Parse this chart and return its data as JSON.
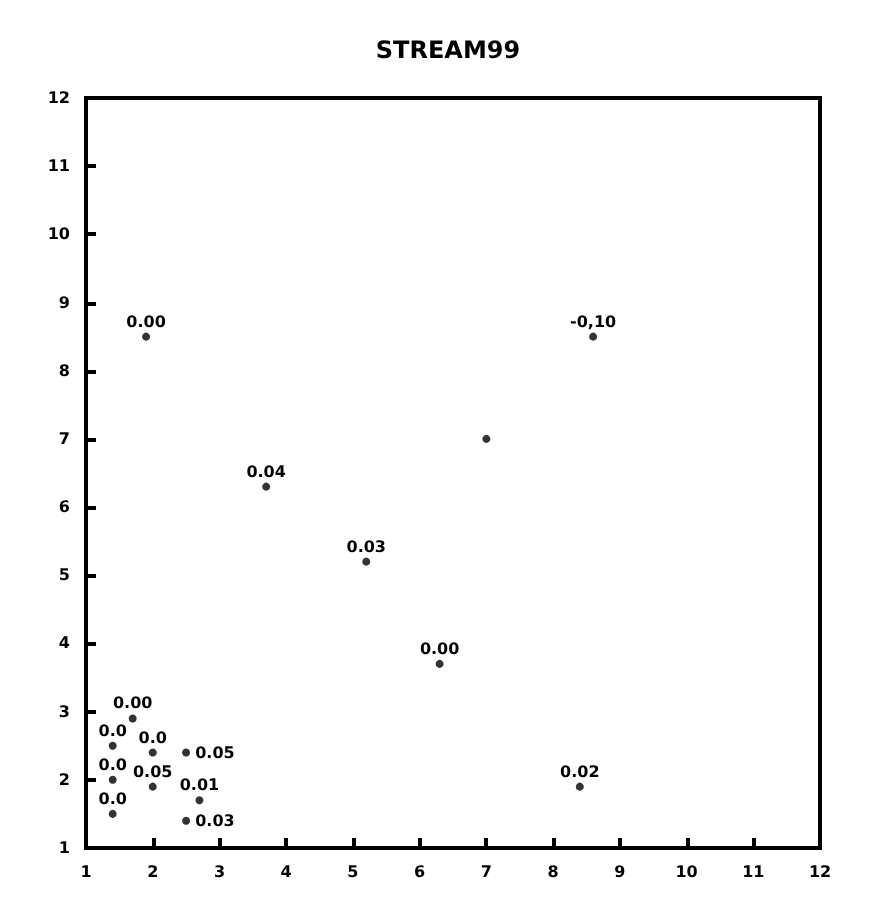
{
  "chart_data": {
    "type": "scatter",
    "title": "STREAM99",
    "x": [
      1.9,
      3.7,
      5.2,
      6.3,
      8.4,
      8.6,
      7.0,
      1.7,
      1.4,
      2.0,
      2.5,
      1.4,
      2.0,
      2.7,
      1.4,
      2.5
    ],
    "values": [
      8.5,
      6.3,
      5.2,
      3.7,
      1.9,
      8.5,
      7.0,
      2.9,
      2.5,
      2.4,
      2.4,
      2.0,
      1.9,
      1.7,
      1.5,
      1.4
    ],
    "color": "#000000",
    "marker": "circle",
    "xlim": [
      1,
      12
    ],
    "xticks": [
      1,
      2,
      3,
      4,
      5,
      6,
      7,
      8,
      9,
      10,
      11,
      12
    ],
    "ylim": [
      1,
      12
    ],
    "yticks": [
      1,
      2,
      3,
      4,
      5,
      6,
      7,
      8,
      9,
      10,
      11,
      12
    ],
    "annotations": [
      {
        "text": "0.00",
        "x": 1.9,
        "y": 8.5
      },
      {
        "text": "0.04",
        "x": 3.7,
        "y": 6.3
      },
      {
        "text": "0.03",
        "x": 5.2,
        "y": 5.2
      },
      {
        "text": "0.00",
        "x": 6.3,
        "y": 3.7
      },
      {
        "text": "0.02",
        "x": 8.4,
        "y": 1.9
      },
      {
        "text": "-0,10",
        "x": 8.6,
        "y": 8.5
      },
      {
        "text": "0.00",
        "x": 1.7,
        "y": 2.9
      },
      {
        "text": "0.0",
        "x": 1.4,
        "y": 2.5
      },
      {
        "text": "0.0",
        "x": 2.0,
        "y": 2.4
      },
      {
        "text": "0.05",
        "x": 2.5,
        "y": 2.4
      },
      {
        "text": "0.0",
        "x": 1.4,
        "y": 2.0
      },
      {
        "text": "0.05",
        "x": 2.0,
        "y": 1.9
      },
      {
        "text": "0.01",
        "x": 2.7,
        "y": 1.7
      },
      {
        "text": "0.0",
        "x": 1.4,
        "y": 1.5
      },
      {
        "text": "0.03",
        "x": 2.5,
        "y": 1.4
      }
    ],
    "grid": false
  }
}
